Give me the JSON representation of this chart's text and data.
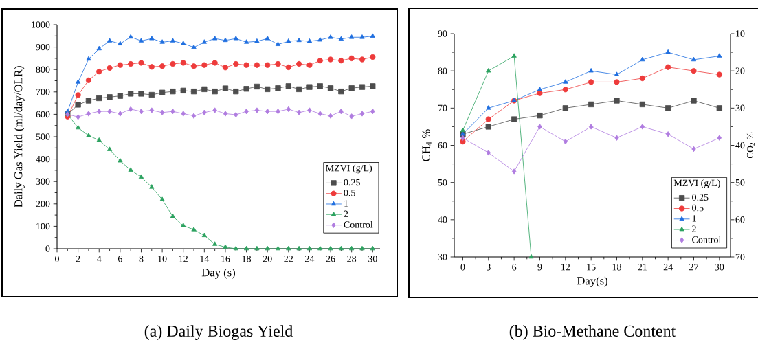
{
  "chart_data": [
    {
      "type": "line",
      "title": "(a) Daily Biogas Yield",
      "xlabel": "Day (s)",
      "ylabel": "Daily Gas Yield (ml/day/OLR)",
      "legend_title": "MZVI (g/L)",
      "x": [
        1,
        2,
        3,
        4,
        5,
        6,
        7,
        8,
        9,
        10,
        11,
        12,
        13,
        14,
        15,
        16,
        17,
        18,
        19,
        20,
        21,
        22,
        23,
        24,
        25,
        26,
        27,
        28,
        29,
        30
      ],
      "xlim": [
        0,
        30.7
      ],
      "xticks": [
        0,
        2,
        4,
        6,
        8,
        10,
        12,
        14,
        16,
        18,
        20,
        22,
        24,
        26,
        28,
        30
      ],
      "ylim": [
        0,
        1000
      ],
      "yticks": [
        0,
        100,
        200,
        300,
        400,
        500,
        600,
        700,
        800,
        900,
        1000
      ],
      "legend": "bottom right",
      "grid": false,
      "series": [
        {
          "name": "0.25",
          "color": "#4d4d4d",
          "marker": "square",
          "values": [
            600,
            643,
            661,
            672,
            677,
            682,
            692,
            692,
            687,
            697,
            702,
            706,
            702,
            712,
            702,
            716,
            702,
            714,
            724,
            712,
            717,
            726,
            712,
            722,
            726,
            717,
            702,
            717,
            722,
            726
          ]
        },
        {
          "name": "0.5",
          "color": "#ee3b3b",
          "marker": "circle",
          "values": [
            590,
            686,
            752,
            791,
            807,
            820,
            825,
            830,
            812,
            815,
            825,
            830,
            815,
            820,
            830,
            809,
            825,
            820,
            820,
            820,
            825,
            810,
            825,
            820,
            840,
            845,
            840,
            850,
            845,
            856
          ]
        },
        {
          "name": "1",
          "color": "#1f6fe0",
          "marker": "triangle",
          "values": [
            612,
            744,
            847,
            893,
            928,
            915,
            945,
            928,
            938,
            922,
            928,
            916,
            899,
            922,
            938,
            930,
            938,
            922,
            926,
            938,
            912,
            926,
            930,
            926,
            932,
            944,
            936,
            944,
            944,
            949
          ]
        },
        {
          "name": "2",
          "color": "#2ca25f",
          "marker": "triangle-down",
          "values": [
            600,
            540,
            505,
            484,
            443,
            392,
            351,
            320,
            275,
            219,
            144,
            103,
            85,
            59,
            20,
            7,
            0,
            0,
            0,
            0,
            0,
            0,
            0,
            0,
            0,
            0,
            0,
            0,
            0,
            0
          ]
        },
        {
          "name": "Control",
          "color": "#b07ce0",
          "marker": "diamond",
          "values": [
            600,
            588,
            603,
            613,
            613,
            603,
            623,
            613,
            618,
            608,
            613,
            603,
            593,
            608,
            618,
            603,
            598,
            613,
            618,
            613,
            613,
            623,
            608,
            618,
            603,
            593,
            613,
            591,
            603,
            613
          ]
        }
      ]
    },
    {
      "type": "line",
      "title": "(b) Bio-Methane Content",
      "xlabel": "Day(s)",
      "ylabel": "CH$_{4}$ %",
      "y2label": "CO$_{2}$ %",
      "legend_title": "MZVI (g/L)",
      "x": [
        0,
        3,
        6,
        9,
        12,
        15,
        18,
        21,
        24,
        27,
        30
      ],
      "xlim": [
        -1,
        31.3
      ],
      "xticks": [
        0,
        3,
        6,
        9,
        12,
        15,
        18,
        21,
        24,
        27,
        30
      ],
      "ylim": [
        30,
        90
      ],
      "yticks": [
        30,
        40,
        50,
        60,
        70,
        80,
        90
      ],
      "y2lim": [
        70,
        10
      ],
      "y2ticks": [
        10,
        20,
        30,
        40,
        50,
        60,
        70
      ],
      "legend": "bottom right",
      "grid": false,
      "series": [
        {
          "name": "0.25",
          "color": "#4d4d4d",
          "marker": "square",
          "values": [
            63,
            65,
            67,
            68,
            70,
            71,
            72,
            71,
            70,
            72,
            70
          ]
        },
        {
          "name": "0.5",
          "color": "#ee3b3b",
          "marker": "circle",
          "values": [
            61,
            67,
            72,
            74,
            75,
            77,
            77,
            78,
            81,
            80,
            79
          ]
        },
        {
          "name": "1",
          "color": "#1f6fe0",
          "marker": "triangle",
          "values": [
            63,
            70,
            72,
            75,
            77,
            80,
            79,
            83,
            85,
            83,
            84
          ]
        },
        {
          "name": "2",
          "color": "#2ca25f",
          "marker": "triangle-down",
          "x": [
            0,
            3,
            6,
            8
          ],
          "values": [
            64,
            80,
            84,
            30
          ]
        },
        {
          "name": "Control",
          "color": "#b07ce0",
          "marker": "diamond",
          "values": [
            62,
            58,
            53,
            65,
            61,
            65,
            62,
            65,
            63,
            59,
            62
          ]
        }
      ]
    }
  ]
}
